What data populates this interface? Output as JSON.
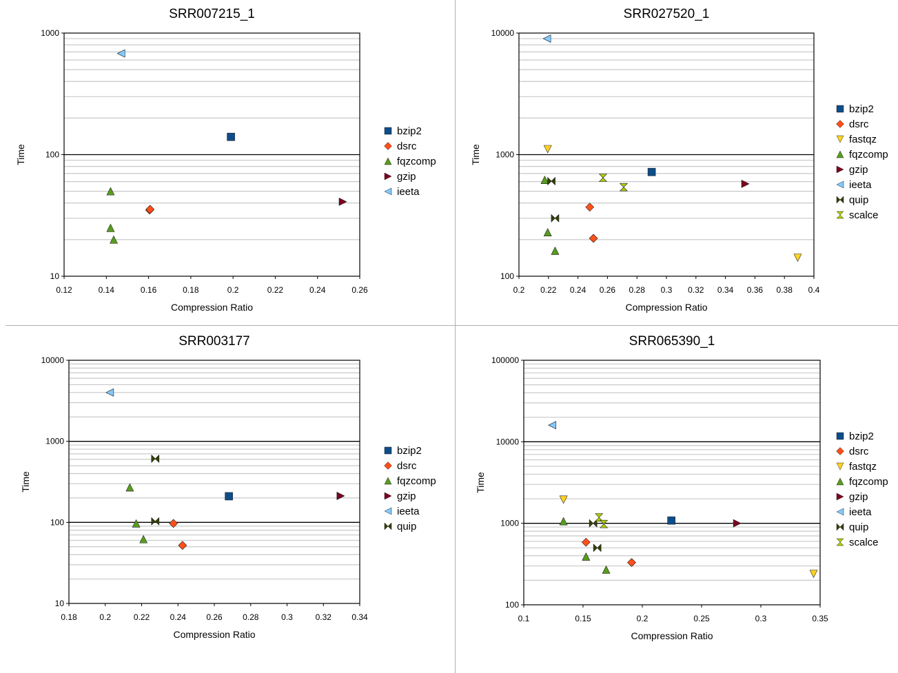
{
  "chart_data": [
    {
      "type": "scatter",
      "title": "SRR007215_1",
      "xlabel": "Compression Ratio",
      "ylabel": "Time",
      "xlim": [
        0.12,
        0.26
      ],
      "xticks": [
        0.12,
        0.14,
        0.16,
        0.18,
        0.2,
        0.22,
        0.24,
        0.26
      ],
      "ylim": [
        10,
        1000
      ],
      "yscale": "log",
      "yticks": [
        "10",
        "100",
        "1000"
      ],
      "grid": "horizontal",
      "legend": "right",
      "series": [
        {
          "name": "bzip2",
          "points": [
            [
              0.199,
              140
            ]
          ]
        },
        {
          "name": "dsrc",
          "points": [
            [
              0.1605,
              35
            ],
            [
              0.1607,
              35.5
            ]
          ]
        },
        {
          "name": "fqzcomp",
          "points": [
            [
              0.142,
              50
            ],
            [
              0.142,
              25
            ],
            [
              0.1435,
              20
            ]
          ]
        },
        {
          "name": "gzip",
          "points": [
            [
              0.252,
              41
            ]
          ]
        },
        {
          "name": "ieeta",
          "points": [
            [
              0.147,
              680
            ]
          ]
        }
      ]
    },
    {
      "type": "scatter",
      "title": "SRR027520_1",
      "xlabel": "Compression Ratio",
      "ylabel": "Time",
      "xlim": [
        0.2,
        0.4
      ],
      "xticks": [
        0.2,
        0.22,
        0.24,
        0.26,
        0.28,
        0.3,
        0.32,
        0.34,
        0.36,
        0.38,
        0.4
      ],
      "ylim": [
        100,
        10000
      ],
      "yscale": "log",
      "yticks": [
        "100",
        "1000",
        "10000"
      ],
      "grid": "horizontal",
      "legend": "right",
      "series": [
        {
          "name": "bzip2",
          "points": [
            [
              0.29,
              720
            ]
          ]
        },
        {
          "name": "dsrc",
          "points": [
            [
              0.248,
              370
            ],
            [
              0.2505,
              205
            ]
          ]
        },
        {
          "name": "fastqz",
          "points": [
            [
              0.2195,
              1110
            ],
            [
              0.389,
              142
            ]
          ]
        },
        {
          "name": "fqzcomp",
          "points": [
            [
              0.2175,
              620
            ],
            [
              0.2195,
              230
            ],
            [
              0.2245,
              162
            ]
          ]
        },
        {
          "name": "gzip",
          "points": [
            [
              0.3535,
              575
            ]
          ]
        },
        {
          "name": "ieeta",
          "points": [
            [
              0.219,
              9000
            ]
          ]
        },
        {
          "name": "quip",
          "points": [
            [
              0.222,
              605
            ],
            [
              0.2245,
              300
            ]
          ]
        },
        {
          "name": "scalce",
          "points": [
            [
              0.257,
              645
            ],
            [
              0.271,
              540
            ]
          ]
        }
      ]
    },
    {
      "type": "scatter",
      "title": "SRR003177",
      "xlabel": "Compression Ratio",
      "ylabel": "Time",
      "xlim": [
        0.18,
        0.34
      ],
      "xticks": [
        0.18,
        0.2,
        0.22,
        0.24,
        0.26,
        0.28,
        0.3,
        0.32,
        0.34
      ],
      "ylim": [
        10,
        10000
      ],
      "yscale": "log",
      "yticks": [
        "10",
        "100",
        "1000",
        "10000"
      ],
      "grid": "horizontal",
      "legend": "right",
      "series": [
        {
          "name": "bzip2",
          "points": [
            [
              0.268,
              210
            ]
          ]
        },
        {
          "name": "dsrc",
          "points": [
            [
              0.2375,
              97
            ],
            [
              0.2425,
              52
            ]
          ]
        },
        {
          "name": "fqzcomp",
          "points": [
            [
              0.2135,
              270
            ],
            [
              0.217,
              97
            ],
            [
              0.221,
              62
            ]
          ]
        },
        {
          "name": "gzip",
          "points": [
            [
              0.3295,
              212
            ]
          ]
        },
        {
          "name": "ieeta",
          "points": [
            [
              0.2025,
              4000
            ]
          ]
        },
        {
          "name": "quip",
          "points": [
            [
              0.2275,
              610
            ],
            [
              0.2275,
              103
            ]
          ]
        }
      ]
    },
    {
      "type": "scatter",
      "title": "SRR065390_1",
      "xlabel": "Compression Ratio",
      "ylabel": "Time",
      "xlim": [
        0.1,
        0.35
      ],
      "xticks": [
        0.1,
        0.15,
        0.2,
        0.25,
        0.3,
        0.35
      ],
      "ylim": [
        100,
        100000
      ],
      "yscale": "log",
      "yticks": [
        "100",
        "1000",
        "10000",
        "100000"
      ],
      "grid": "horizontal",
      "legend": "right",
      "series": [
        {
          "name": "bzip2",
          "points": [
            [
              0.2245,
              1080
            ]
          ]
        },
        {
          "name": "dsrc",
          "points": [
            [
              0.1525,
              585
            ],
            [
              0.191,
              330
            ]
          ]
        },
        {
          "name": "fastqz",
          "points": [
            [
              0.1335,
              1950
            ],
            [
              0.3445,
              240
            ]
          ]
        },
        {
          "name": "fqzcomp",
          "points": [
            [
              0.1335,
              1060
            ],
            [
              0.1525,
              390
            ],
            [
              0.1695,
              270
            ]
          ]
        },
        {
          "name": "gzip",
          "points": [
            [
              0.28,
              1000
            ]
          ]
        },
        {
          "name": "ieeta",
          "points": [
            [
              0.124,
              16000
            ]
          ]
        },
        {
          "name": "quip",
          "points": [
            [
              0.1585,
              1000
            ],
            [
              0.162,
              500
            ]
          ]
        },
        {
          "name": "scalce",
          "points": [
            [
              0.1635,
              1180
            ],
            [
              0.1675,
              980
            ]
          ]
        }
      ]
    }
  ],
  "styles": {
    "bzip2": {
      "marker": "square",
      "color": "#0d4d8a"
    },
    "dsrc": {
      "marker": "diamond",
      "color": "#ff4f1a"
    },
    "fastqz": {
      "marker": "tri-down",
      "color": "#ffd320"
    },
    "fqzcomp": {
      "marker": "tri-up",
      "color": "#579d1c"
    },
    "gzip": {
      "marker": "tri-right",
      "color": "#7e0021"
    },
    "ieeta": {
      "marker": "tri-left",
      "color": "#83caff"
    },
    "quip": {
      "marker": "bowtie",
      "color": "#314004"
    },
    "scalce": {
      "marker": "hourglass",
      "color": "#aecf00"
    }
  }
}
